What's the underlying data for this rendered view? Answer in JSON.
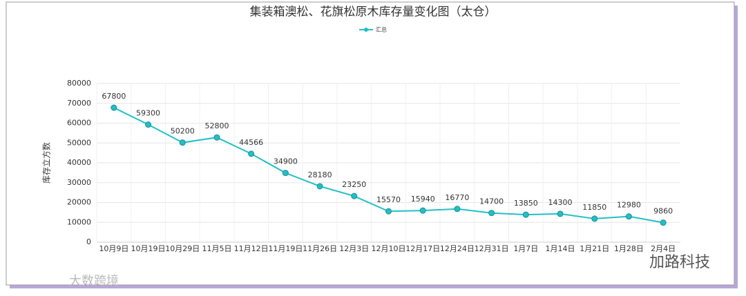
{
  "chart_data": {
    "type": "line",
    "title": "集装箱澳松、花旗松原木库存量变化图（太仓）",
    "y_label": "库存立方数",
    "categories": [
      "10月9日",
      "10月19日",
      "10月29日",
      "11月5日",
      "11月12日",
      "11月19日",
      "11月26日",
      "12月3日",
      "12月10日",
      "12月17日",
      "12月24日",
      "12月31日",
      "1月7日",
      "1月14日",
      "1月21日",
      "1月28日",
      "2月4日"
    ],
    "series": [
      {
        "name": "汇总",
        "color": "#22bfc7",
        "values": [
          67800,
          59300,
          50200,
          52800,
          44566,
          34900,
          28180,
          23250,
          15570,
          15940,
          16770,
          14700,
          13850,
          14300,
          11850,
          12980,
          9860
        ]
      }
    ],
    "ylim": [
      0,
      80000
    ],
    "yticks": [
      0,
      10000,
      20000,
      30000,
      40000,
      50000,
      60000,
      70000,
      80000
    ],
    "grid": true,
    "legend": "top"
  },
  "watermarks": [
    "大数跨境",
    "加路科技"
  ]
}
